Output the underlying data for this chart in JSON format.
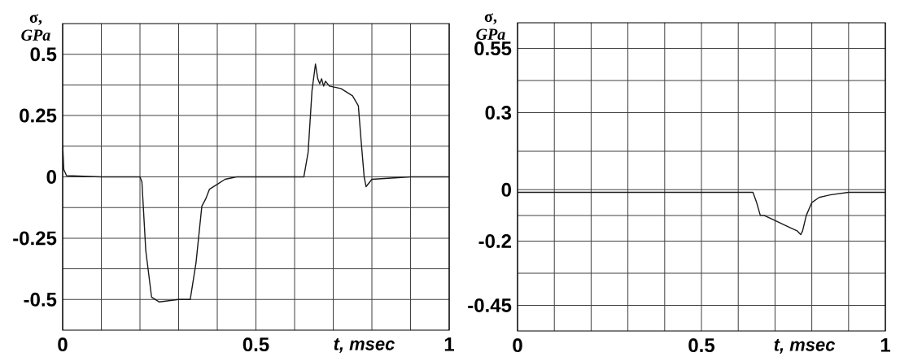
{
  "chart_data": [
    {
      "type": "line",
      "ylabel": "σ, *GPa*",
      "xlabel": "t, msec",
      "grid": true,
      "color": "#1a1a1a",
      "xlim": [
        0,
        1
      ],
      "ylim": [
        -0.625,
        0.625
      ],
      "xticks": [
        0,
        {
          "value": 0.1,
          "label": null
        },
        {
          "value": 0.2,
          "label": null
        },
        {
          "value": 0.3,
          "label": null
        },
        {
          "value": 0.4,
          "label": null
        },
        0.5,
        {
          "value": 0.6,
          "label": null
        },
        {
          "value": 0.7,
          "label": null
        },
        {
          "value": 0.8,
          "label": null
        },
        {
          "value": 0.9,
          "label": null
        },
        1
      ],
      "yticks": [
        -0.5,
        {
          "value": -0.375,
          "label": null
        },
        -0.25,
        {
          "value": -0.125,
          "label": null
        },
        0,
        {
          "value": 0.125,
          "label": null
        },
        0.25,
        {
          "value": 0.375,
          "label": null
        },
        0.5
      ],
      "x": [
        0,
        0.003,
        0.01,
        0.1,
        0.2,
        0.205,
        0.215,
        0.23,
        0.25,
        0.3,
        0.33,
        0.345,
        0.36,
        0.37,
        0.38,
        0.4,
        0.42,
        0.45,
        0.5,
        0.6,
        0.624,
        0.635,
        0.645,
        0.654,
        0.66,
        0.665,
        0.67,
        0.675,
        0.68,
        0.69,
        0.72,
        0.75,
        0.765,
        0.772,
        0.78,
        0.785,
        0.79,
        0.8,
        0.85,
        0.9,
        1
      ],
      "values": [
        0.13,
        0.03,
        0.005,
        0,
        0,
        -0.02,
        -0.3,
        -0.49,
        -0.51,
        -0.5,
        -0.5,
        -0.35,
        -0.12,
        -0.09,
        -0.05,
        -0.03,
        -0.01,
        0,
        0,
        0,
        0,
        0.1,
        0.35,
        0.46,
        0.4,
        0.38,
        0.4,
        0.37,
        0.39,
        0.37,
        0.36,
        0.33,
        0.29,
        0.15,
        0.0,
        -0.04,
        -0.03,
        -0.01,
        -0.005,
        0,
        0
      ]
    },
    {
      "type": "line",
      "ylabel": "σ, *GPa*",
      "xlabel": "t, msec",
      "grid": true,
      "color": "#1a1a1a",
      "xlim": [
        0,
        1
      ],
      "ylim": [
        -0.55,
        0.65
      ],
      "xticks": [
        0,
        {
          "value": 0.1,
          "label": null
        },
        {
          "value": 0.2,
          "label": null
        },
        {
          "value": 0.3,
          "label": null
        },
        {
          "value": 0.4,
          "label": null
        },
        0.5,
        {
          "value": 0.6,
          "label": null
        },
        {
          "value": 0.7,
          "label": null
        },
        {
          "value": 0.8,
          "label": null
        },
        {
          "value": 0.9,
          "label": null
        },
        1
      ],
      "yticks": [
        -0.45,
        {
          "value": -0.325,
          "label": null
        },
        -0.2,
        {
          "value": -0.1,
          "label": null
        },
        0,
        {
          "value": 0.15,
          "label": null
        },
        0.3,
        {
          "value": 0.425,
          "label": null
        },
        0.55
      ],
      "x": [
        0,
        0.3,
        0.6,
        0.64,
        0.65,
        0.66,
        0.67,
        0.7,
        0.73,
        0.76,
        0.77,
        0.775,
        0.785,
        0.8,
        0.82,
        0.85,
        0.9,
        1
      ],
      "values": [
        -0.01,
        -0.01,
        -0.01,
        -0.01,
        -0.05,
        -0.1,
        -0.1,
        -0.12,
        -0.14,
        -0.16,
        -0.175,
        -0.16,
        -0.1,
        -0.05,
        -0.03,
        -0.02,
        -0.01,
        -0.01
      ]
    }
  ]
}
